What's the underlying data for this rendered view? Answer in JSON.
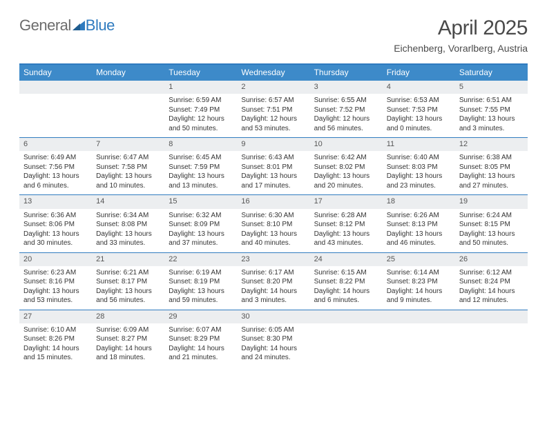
{
  "branding": {
    "word1": "General",
    "word2": "Blue",
    "logo_color": "#2f7bbf",
    "gray": "#6c6c6c"
  },
  "header": {
    "title": "April 2025",
    "location": "Eichenberg, Vorarlberg, Austria"
  },
  "colors": {
    "header_bar": "#3d8ac9",
    "rule": "#2f7bbf",
    "daybar": "#eceef0",
    "text": "#333333"
  },
  "daysOfWeek": [
    "Sunday",
    "Monday",
    "Tuesday",
    "Wednesday",
    "Thursday",
    "Friday",
    "Saturday"
  ],
  "weeks": [
    [
      {
        "n": "",
        "empty": true
      },
      {
        "n": "",
        "empty": true
      },
      {
        "n": "1",
        "sr": "Sunrise: 6:59 AM",
        "ss": "Sunset: 7:49 PM",
        "dl": "Daylight: 12 hours and 50 minutes."
      },
      {
        "n": "2",
        "sr": "Sunrise: 6:57 AM",
        "ss": "Sunset: 7:51 PM",
        "dl": "Daylight: 12 hours and 53 minutes."
      },
      {
        "n": "3",
        "sr": "Sunrise: 6:55 AM",
        "ss": "Sunset: 7:52 PM",
        "dl": "Daylight: 12 hours and 56 minutes."
      },
      {
        "n": "4",
        "sr": "Sunrise: 6:53 AM",
        "ss": "Sunset: 7:53 PM",
        "dl": "Daylight: 13 hours and 0 minutes."
      },
      {
        "n": "5",
        "sr": "Sunrise: 6:51 AM",
        "ss": "Sunset: 7:55 PM",
        "dl": "Daylight: 13 hours and 3 minutes."
      }
    ],
    [
      {
        "n": "6",
        "sr": "Sunrise: 6:49 AM",
        "ss": "Sunset: 7:56 PM",
        "dl": "Daylight: 13 hours and 6 minutes."
      },
      {
        "n": "7",
        "sr": "Sunrise: 6:47 AM",
        "ss": "Sunset: 7:58 PM",
        "dl": "Daylight: 13 hours and 10 minutes."
      },
      {
        "n": "8",
        "sr": "Sunrise: 6:45 AM",
        "ss": "Sunset: 7:59 PM",
        "dl": "Daylight: 13 hours and 13 minutes."
      },
      {
        "n": "9",
        "sr": "Sunrise: 6:43 AM",
        "ss": "Sunset: 8:01 PM",
        "dl": "Daylight: 13 hours and 17 minutes."
      },
      {
        "n": "10",
        "sr": "Sunrise: 6:42 AM",
        "ss": "Sunset: 8:02 PM",
        "dl": "Daylight: 13 hours and 20 minutes."
      },
      {
        "n": "11",
        "sr": "Sunrise: 6:40 AM",
        "ss": "Sunset: 8:03 PM",
        "dl": "Daylight: 13 hours and 23 minutes."
      },
      {
        "n": "12",
        "sr": "Sunrise: 6:38 AM",
        "ss": "Sunset: 8:05 PM",
        "dl": "Daylight: 13 hours and 27 minutes."
      }
    ],
    [
      {
        "n": "13",
        "sr": "Sunrise: 6:36 AM",
        "ss": "Sunset: 8:06 PM",
        "dl": "Daylight: 13 hours and 30 minutes."
      },
      {
        "n": "14",
        "sr": "Sunrise: 6:34 AM",
        "ss": "Sunset: 8:08 PM",
        "dl": "Daylight: 13 hours and 33 minutes."
      },
      {
        "n": "15",
        "sr": "Sunrise: 6:32 AM",
        "ss": "Sunset: 8:09 PM",
        "dl": "Daylight: 13 hours and 37 minutes."
      },
      {
        "n": "16",
        "sr": "Sunrise: 6:30 AM",
        "ss": "Sunset: 8:10 PM",
        "dl": "Daylight: 13 hours and 40 minutes."
      },
      {
        "n": "17",
        "sr": "Sunrise: 6:28 AM",
        "ss": "Sunset: 8:12 PM",
        "dl": "Daylight: 13 hours and 43 minutes."
      },
      {
        "n": "18",
        "sr": "Sunrise: 6:26 AM",
        "ss": "Sunset: 8:13 PM",
        "dl": "Daylight: 13 hours and 46 minutes."
      },
      {
        "n": "19",
        "sr": "Sunrise: 6:24 AM",
        "ss": "Sunset: 8:15 PM",
        "dl": "Daylight: 13 hours and 50 minutes."
      }
    ],
    [
      {
        "n": "20",
        "sr": "Sunrise: 6:23 AM",
        "ss": "Sunset: 8:16 PM",
        "dl": "Daylight: 13 hours and 53 minutes."
      },
      {
        "n": "21",
        "sr": "Sunrise: 6:21 AM",
        "ss": "Sunset: 8:17 PM",
        "dl": "Daylight: 13 hours and 56 minutes."
      },
      {
        "n": "22",
        "sr": "Sunrise: 6:19 AM",
        "ss": "Sunset: 8:19 PM",
        "dl": "Daylight: 13 hours and 59 minutes."
      },
      {
        "n": "23",
        "sr": "Sunrise: 6:17 AM",
        "ss": "Sunset: 8:20 PM",
        "dl": "Daylight: 14 hours and 3 minutes."
      },
      {
        "n": "24",
        "sr": "Sunrise: 6:15 AM",
        "ss": "Sunset: 8:22 PM",
        "dl": "Daylight: 14 hours and 6 minutes."
      },
      {
        "n": "25",
        "sr": "Sunrise: 6:14 AM",
        "ss": "Sunset: 8:23 PM",
        "dl": "Daylight: 14 hours and 9 minutes."
      },
      {
        "n": "26",
        "sr": "Sunrise: 6:12 AM",
        "ss": "Sunset: 8:24 PM",
        "dl": "Daylight: 14 hours and 12 minutes."
      }
    ],
    [
      {
        "n": "27",
        "sr": "Sunrise: 6:10 AM",
        "ss": "Sunset: 8:26 PM",
        "dl": "Daylight: 14 hours and 15 minutes."
      },
      {
        "n": "28",
        "sr": "Sunrise: 6:09 AM",
        "ss": "Sunset: 8:27 PM",
        "dl": "Daylight: 14 hours and 18 minutes."
      },
      {
        "n": "29",
        "sr": "Sunrise: 6:07 AM",
        "ss": "Sunset: 8:29 PM",
        "dl": "Daylight: 14 hours and 21 minutes."
      },
      {
        "n": "30",
        "sr": "Sunrise: 6:05 AM",
        "ss": "Sunset: 8:30 PM",
        "dl": "Daylight: 14 hours and 24 minutes."
      },
      {
        "n": "",
        "empty": true
      },
      {
        "n": "",
        "empty": true
      },
      {
        "n": "",
        "empty": true
      }
    ]
  ]
}
